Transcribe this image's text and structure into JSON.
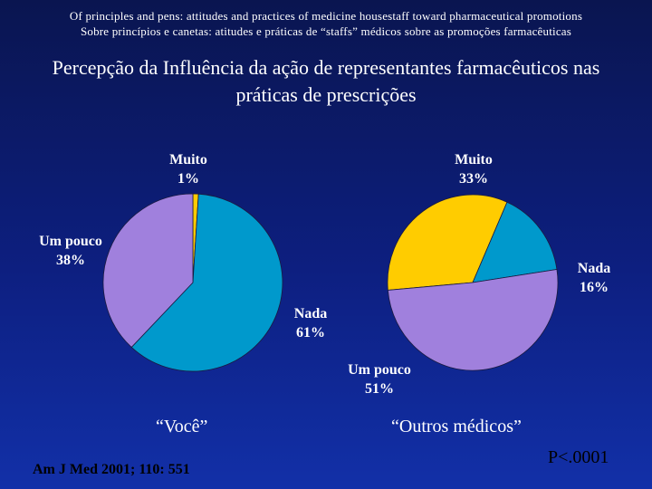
{
  "header": {
    "line1": "Of principles and pens: attitudes and practices of medicine housestaff toward pharmaceutical promotions",
    "line2": "Sobre princípios e canetas: atitudes e práticas de “staffs” médicos sobre as promoções farmacêuticas"
  },
  "title_line1": "Percepção da Influência da ação de representantes farmacêuticos nas",
  "title_line2": "práticas de prescrições",
  "chart_data": [
    {
      "type": "pie",
      "title": "“Você”",
      "categories": [
        "Muito",
        "Nada",
        "Um pouco"
      ],
      "values": [
        1,
        61,
        38
      ],
      "value_labels": [
        "1%",
        "61%",
        "38%"
      ],
      "colors": [
        "#ffcc00",
        "#0099cc",
        "#a080dd"
      ]
    },
    {
      "type": "pie",
      "title": "“Outros médicos”",
      "categories": [
        "Muito",
        "Nada",
        "Um pouco"
      ],
      "values": [
        33,
        16,
        51
      ],
      "value_labels": [
        "33%",
        "16%",
        "51%"
      ],
      "colors": [
        "#ffcc00",
        "#0099cc",
        "#a080dd"
      ]
    }
  ],
  "citation": "Am J Med 2001; 110: 551",
  "p_value": "P<.0001",
  "colors": {
    "muito": "#ffcc00",
    "nada": "#0099cc",
    "um_pouco": "#a080dd",
    "background": "#0d1f80"
  }
}
